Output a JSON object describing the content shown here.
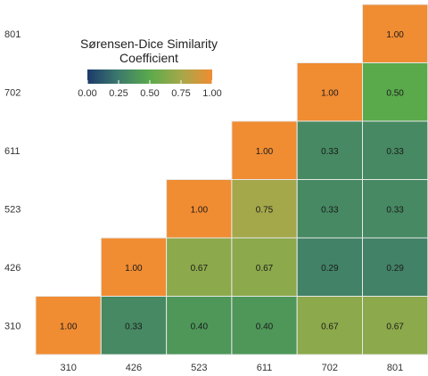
{
  "chart_data": {
    "type": "heatmap",
    "title": "",
    "xlabel": "",
    "ylabel": "",
    "x_categories": [
      "310",
      "426",
      "523",
      "611",
      "702",
      "801"
    ],
    "y_categories": [
      "310",
      "426",
      "523",
      "611",
      "702",
      "801"
    ],
    "cells": [
      {
        "x": "310",
        "y": "310",
        "value": 1.0,
        "label": "1.00"
      },
      {
        "x": "426",
        "y": "310",
        "value": 0.33,
        "label": "0.33"
      },
      {
        "x": "523",
        "y": "310",
        "value": 0.4,
        "label": "0.40"
      },
      {
        "x": "611",
        "y": "310",
        "value": 0.4,
        "label": "0.40"
      },
      {
        "x": "702",
        "y": "310",
        "value": 0.67,
        "label": "0.67"
      },
      {
        "x": "801",
        "y": "310",
        "value": 0.67,
        "label": "0.67"
      },
      {
        "x": "426",
        "y": "426",
        "value": 1.0,
        "label": "1.00"
      },
      {
        "x": "523",
        "y": "426",
        "value": 0.67,
        "label": "0.67"
      },
      {
        "x": "611",
        "y": "426",
        "value": 0.67,
        "label": "0.67"
      },
      {
        "x": "702",
        "y": "426",
        "value": 0.29,
        "label": "0.29"
      },
      {
        "x": "801",
        "y": "426",
        "value": 0.29,
        "label": "0.29"
      },
      {
        "x": "523",
        "y": "523",
        "value": 1.0,
        "label": "1.00"
      },
      {
        "x": "611",
        "y": "523",
        "value": 0.75,
        "label": "0.75"
      },
      {
        "x": "702",
        "y": "523",
        "value": 0.33,
        "label": "0.33"
      },
      {
        "x": "801",
        "y": "523",
        "value": 0.33,
        "label": "0.33"
      },
      {
        "x": "611",
        "y": "611",
        "value": 1.0,
        "label": "1.00"
      },
      {
        "x": "702",
        "y": "611",
        "value": 0.33,
        "label": "0.33"
      },
      {
        "x": "801",
        "y": "611",
        "value": 0.33,
        "label": "0.33"
      },
      {
        "x": "702",
        "y": "702",
        "value": 1.0,
        "label": "1.00"
      },
      {
        "x": "801",
        "y": "702",
        "value": 0.5,
        "label": "0.50"
      },
      {
        "x": "801",
        "y": "801",
        "value": 1.0,
        "label": "1.00"
      }
    ],
    "legend": {
      "title_line1": "Sørensen-Dice Similarity",
      "title_line2": "Coefficient",
      "placement": "top-left",
      "range": [
        0,
        1
      ],
      "ticks": [
        "0.00",
        "0.25",
        "0.50",
        "0.75",
        "1.00"
      ]
    },
    "color_stops": [
      "#1d3a6b",
      "#3d7a6c",
      "#5aaa4c",
      "#a4a84a",
      "#f08c32"
    ],
    "grid": false
  }
}
